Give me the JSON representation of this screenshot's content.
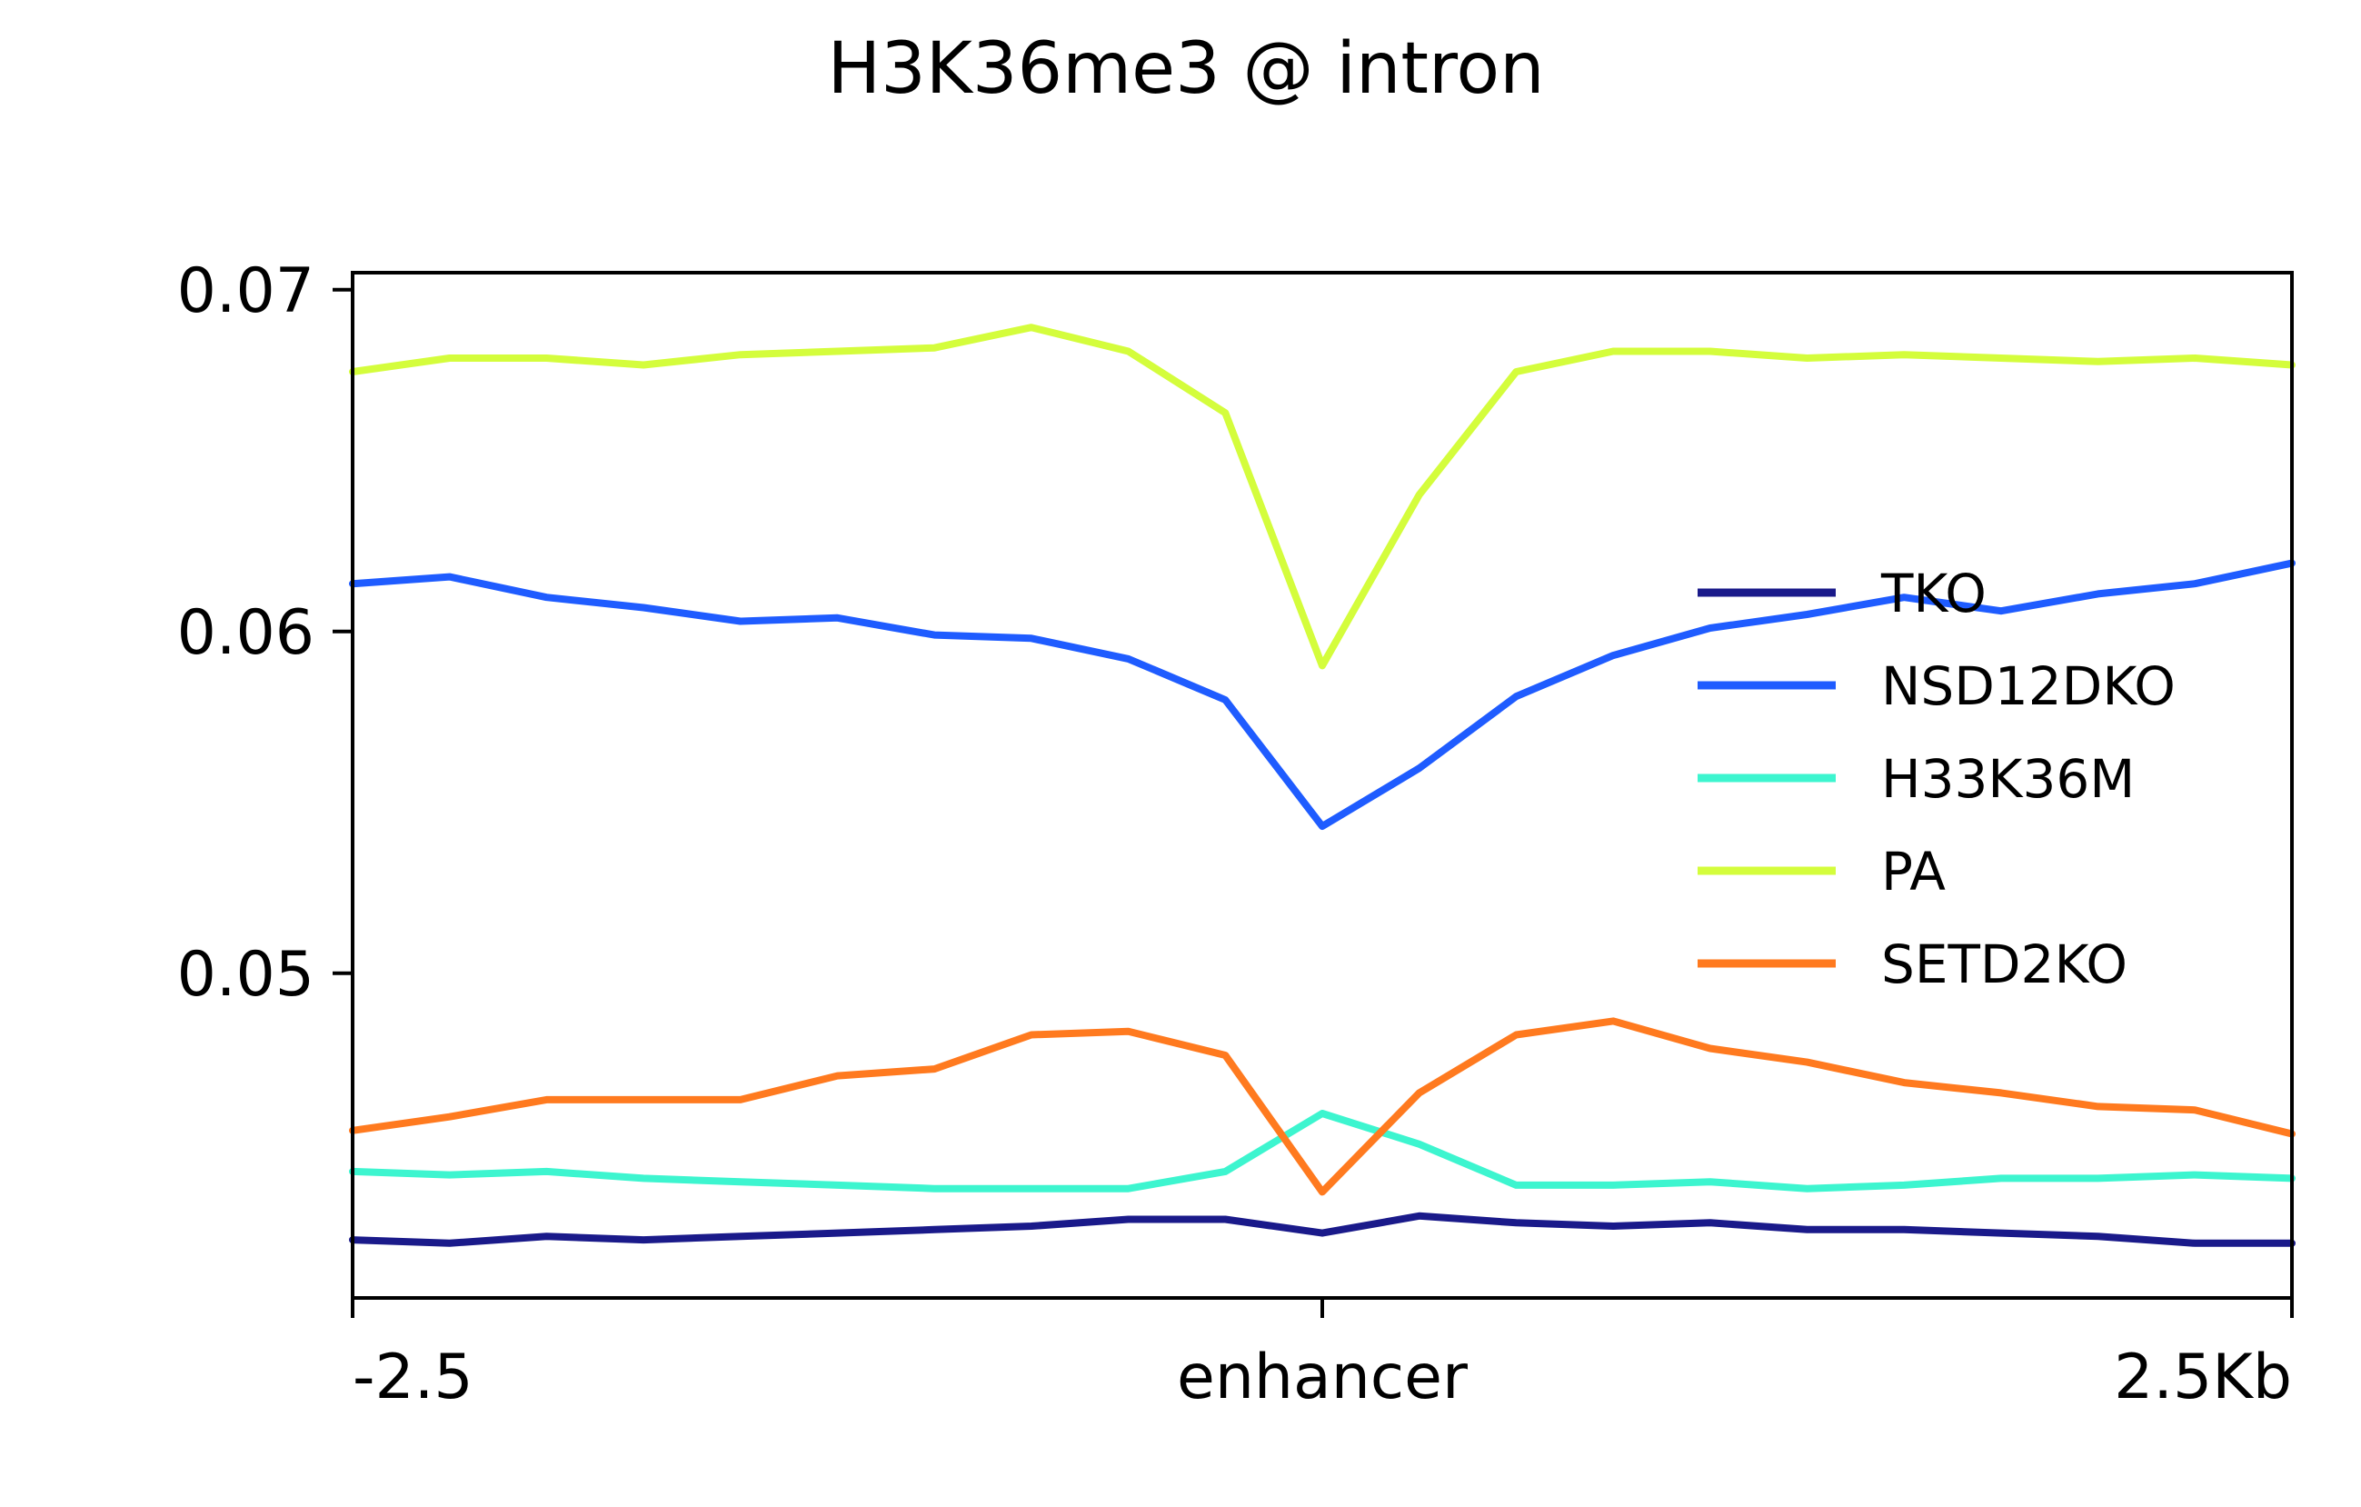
{
  "chart_data": {
    "type": "line",
    "title": "H3K36me3 @ intron",
    "xlabel": "",
    "ylabel": "",
    "x_tick_labels": [
      "-2.5",
      "enhancer",
      "2.5Kb"
    ],
    "y_ticks": [
      0.05,
      0.06,
      0.07
    ],
    "y_tick_labels": [
      "0.05",
      "0.06",
      "0.07"
    ],
    "xlim": [
      -2.5,
      2.5
    ],
    "ylim": [
      0.0405,
      0.0705
    ],
    "grid": false,
    "legend_position": "center-right",
    "x": [
      -2.5,
      -2.25,
      -2.0,
      -1.75,
      -1.5,
      -1.25,
      -1.0,
      -0.75,
      -0.5,
      -0.25,
      0.0,
      0.25,
      0.5,
      0.75,
      1.0,
      1.25,
      1.5,
      1.75,
      2.0,
      2.25,
      2.5
    ],
    "series": [
      {
        "name": "TKO",
        "color": "#1a1a8a",
        "values": [
          0.0422,
          0.0421,
          0.0423,
          0.0422,
          0.0423,
          0.0424,
          0.0425,
          0.0426,
          0.0428,
          0.0428,
          0.0424,
          0.0429,
          0.0427,
          0.0426,
          0.0427,
          0.0425,
          0.0425,
          0.0424,
          0.0423,
          0.0421,
          0.0421
        ]
      },
      {
        "name": "NSD12DKO",
        "color": "#1f5cff",
        "values": [
          0.0614,
          0.0616,
          0.061,
          0.0607,
          0.0603,
          0.0604,
          0.0599,
          0.0598,
          0.0592,
          0.058,
          0.0543,
          0.056,
          0.0581,
          0.0593,
          0.0601,
          0.0605,
          0.061,
          0.0606,
          0.0611,
          0.0614,
          0.062
        ]
      },
      {
        "name": "H33K36M",
        "color": "#3df5cf",
        "values": [
          0.0442,
          0.0441,
          0.0442,
          0.044,
          0.0439,
          0.0438,
          0.0437,
          0.0437,
          0.0437,
          0.0442,
          0.0459,
          0.045,
          0.0438,
          0.0438,
          0.0439,
          0.0437,
          0.0438,
          0.044,
          0.044,
          0.0441,
          0.044
        ]
      },
      {
        "name": "PA",
        "color": "#d4fd3c",
        "values": [
          0.0676,
          0.068,
          0.068,
          0.0678,
          0.0681,
          0.0682,
          0.0683,
          0.0689,
          0.0682,
          0.0664,
          0.059,
          0.064,
          0.0676,
          0.0682,
          0.0682,
          0.068,
          0.0681,
          0.068,
          0.0679,
          0.068,
          0.0678
        ]
      },
      {
        "name": "SETD2KO",
        "color": "#ff7a1f",
        "values": [
          0.0454,
          0.0458,
          0.0463,
          0.0463,
          0.0463,
          0.047,
          0.0472,
          0.0482,
          0.0483,
          0.0476,
          0.0436,
          0.0465,
          0.0482,
          0.0486,
          0.0478,
          0.0474,
          0.0468,
          0.0465,
          0.0461,
          0.046,
          0.0453
        ]
      }
    ]
  }
}
